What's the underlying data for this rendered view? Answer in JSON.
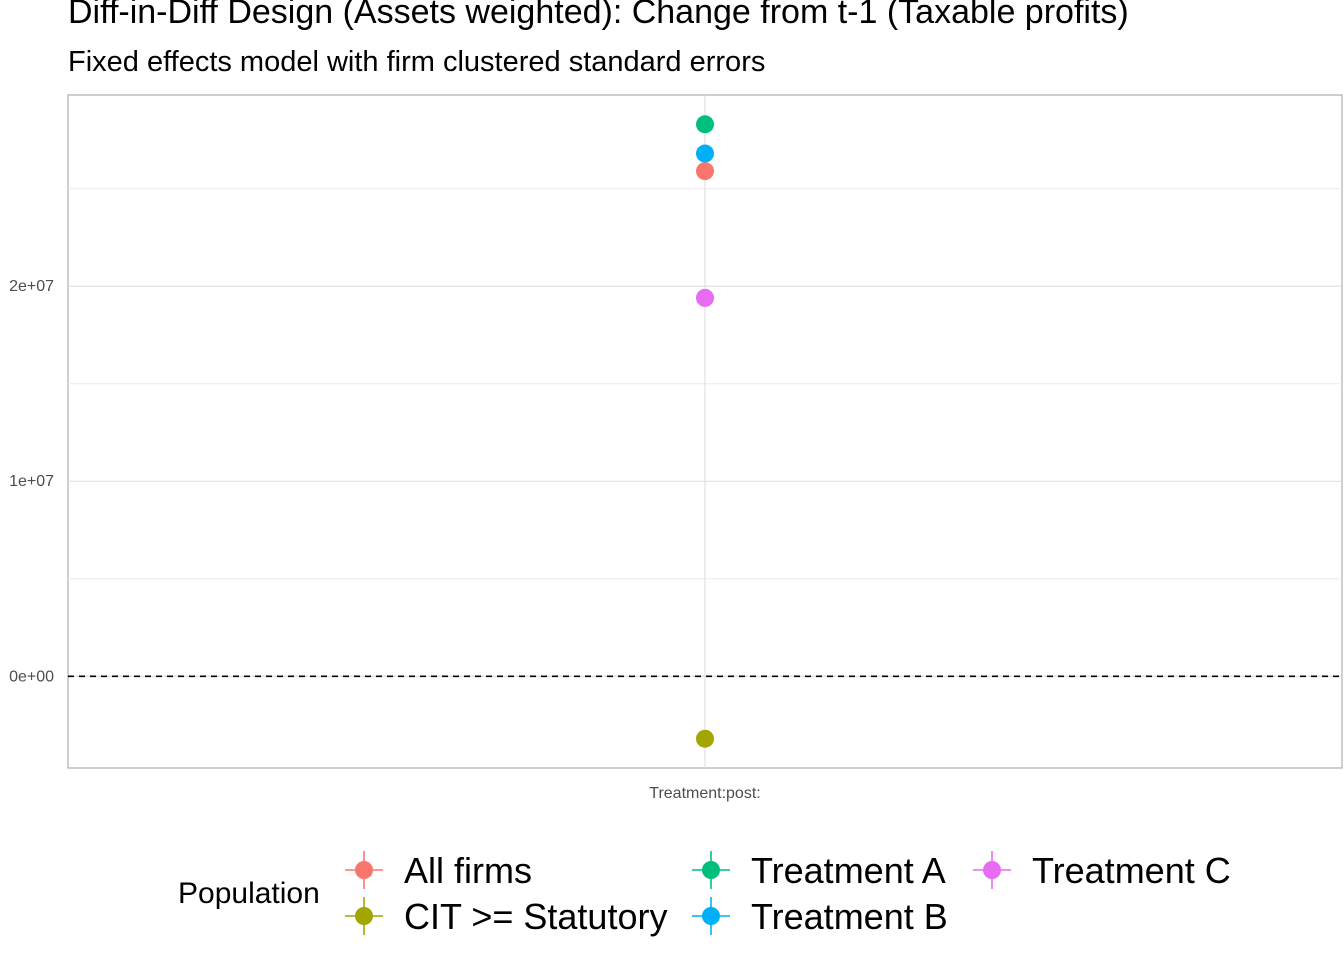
{
  "chart_data": {
    "type": "scatter",
    "title": "Diff-in-Diff Design (Assets weighted): Change from t-1 (Taxable profits)",
    "subtitle": "Fixed effects model with firm clustered standard errors",
    "xlabel": "",
    "ylabel": "",
    "categories": [
      "Treatment:post:"
    ],
    "ylim": [
      -4700000,
      29800000
    ],
    "y_ticks": [
      0,
      10000000,
      20000000
    ],
    "y_tick_labels": [
      "0e+00",
      "1e+07",
      "2e+07"
    ],
    "y_minor_grid": [
      5000000,
      15000000,
      25000000
    ],
    "reference_line": {
      "y": 0,
      "style": "dashed"
    },
    "grid": true,
    "legend": {
      "title": "Population",
      "placement": "bottom"
    },
    "series": [
      {
        "name": "All firms",
        "color": "#F8766D",
        "values": [
          25900000
        ]
      },
      {
        "name": "CIT >= Statutory",
        "color": "#A3A500",
        "values": [
          -3200000
        ]
      },
      {
        "name": "Treatment A",
        "color": "#00BF7D",
        "values": [
          28300000
        ]
      },
      {
        "name": "Treatment B",
        "color": "#00B0F6",
        "values": [
          26800000
        ]
      },
      {
        "name": "Treatment C",
        "color": "#E76BF3",
        "values": [
          19400000
        ]
      }
    ]
  }
}
